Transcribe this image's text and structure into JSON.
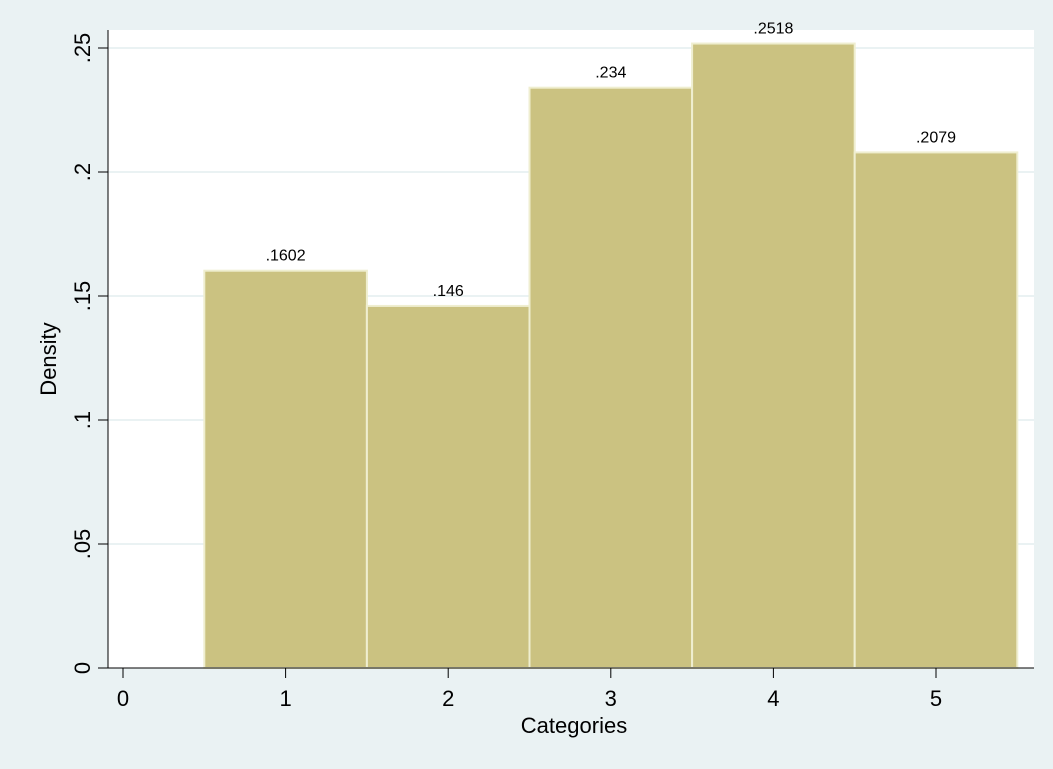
{
  "colors": {
    "page_background": "#eaf2f3",
    "plot_background": "#ffffff",
    "gridline": "#eaf2f3",
    "bar_fill": "#cbc281",
    "bar_edge": "#efeed0",
    "axis_line": "#000000",
    "text": "#000000"
  },
  "chart_data": {
    "type": "bar",
    "title": "",
    "xlabel": "Categories",
    "ylabel": "Density",
    "xlim": [
      -0.1,
      5.5
    ],
    "ylim": [
      0,
      0.26
    ],
    "grid": true,
    "legend": "none",
    "bar_width": 1,
    "x_ticks": [
      0,
      1,
      2,
      3,
      4,
      5
    ],
    "x_tick_labels": [
      "0",
      "1",
      "2",
      "3",
      "4",
      "5"
    ],
    "y_ticks": [
      0,
      0.05,
      0.1,
      0.15,
      0.2,
      0.25
    ],
    "y_tick_labels": [
      "0",
      ".05",
      ".1",
      ".15",
      ".2",
      ".25"
    ],
    "categories": [
      1,
      2,
      3,
      4,
      5
    ],
    "values": [
      0.1602,
      0.146,
      0.234,
      0.2518,
      0.2079
    ],
    "data_labels": [
      ".1602",
      ".146",
      ".234",
      ".2518",
      ".2079"
    ]
  }
}
